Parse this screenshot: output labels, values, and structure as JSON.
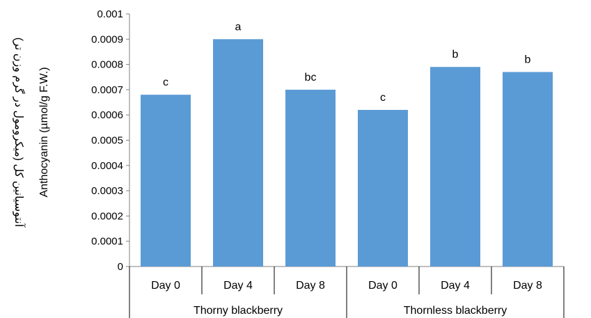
{
  "chart_data": {
    "type": "bar",
    "ylabel_fa": "آنتوسیانین کل (میکرومول در گرم وزن تر)",
    "ylabel_en": "Anthocyanin (µmol/g F.W.)",
    "ylim": [
      0,
      0.001
    ],
    "yticks": [
      "0",
      "0.0001",
      "0.0002",
      "0.0003",
      "0.0004",
      "0.0005",
      "0.0006",
      "0.0007",
      "0.0008",
      "0.0009",
      "0.001"
    ],
    "categories": [
      "Day 0",
      "Day 4",
      "Day 8",
      "Day 0",
      "Day 4",
      "Day 8"
    ],
    "groups": [
      {
        "label": "Thorny blackberry",
        "span": 3
      },
      {
        "label": "Thornless blackberry",
        "span": 3
      }
    ],
    "values": [
      0.00068,
      0.0009,
      0.0007,
      0.00062,
      0.00079,
      0.00077
    ],
    "labels": [
      "c",
      "a",
      "bc",
      "c",
      "b",
      "b"
    ],
    "bar_color": "#5B9BD5",
    "grid": false,
    "legend": "none"
  }
}
